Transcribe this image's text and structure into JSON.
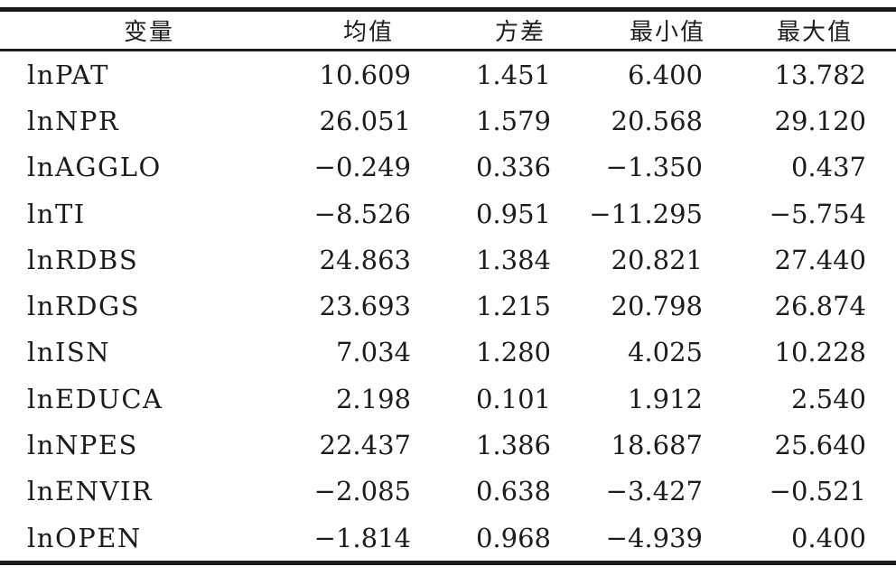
{
  "table": {
    "title": "descriptive-statistics",
    "columns": [
      {
        "key": "variable",
        "label": "变量"
      },
      {
        "key": "mean",
        "label": "均值"
      },
      {
        "key": "variance",
        "label": "方差"
      },
      {
        "key": "min",
        "label": "最小值"
      },
      {
        "key": "max",
        "label": "最大值"
      }
    ],
    "rows": [
      {
        "variable": "lnPAT",
        "mean": "10.609",
        "variance": "1.451",
        "min": "6.400",
        "max": "13.782"
      },
      {
        "variable": "lnNPR",
        "mean": "26.051",
        "variance": "1.579",
        "min": "20.568",
        "max": "29.120"
      },
      {
        "variable": "lnAGGLO",
        "mean": "−0.249",
        "variance": "0.336",
        "min": "−1.350",
        "max": "0.437"
      },
      {
        "variable": "lnTI",
        "mean": "−8.526",
        "variance": "0.951",
        "min": "−11.295",
        "max": "−5.754"
      },
      {
        "variable": "lnRDBS",
        "mean": "24.863",
        "variance": "1.384",
        "min": "20.821",
        "max": "27.440"
      },
      {
        "variable": "lnRDGS",
        "mean": "23.693",
        "variance": "1.215",
        "min": "20.798",
        "max": "26.874"
      },
      {
        "variable": "lnISN",
        "mean": "7.034",
        "variance": "1.280",
        "min": "4.025",
        "max": "10.228"
      },
      {
        "variable": "lnEDUCA",
        "mean": "2.198",
        "variance": "0.101",
        "min": "1.912",
        "max": "2.540"
      },
      {
        "variable": "lnNPES",
        "mean": "22.437",
        "variance": "1.386",
        "min": "18.687",
        "max": "25.640"
      },
      {
        "variable": "lnENVIR",
        "mean": "−2.085",
        "variance": "0.638",
        "min": "−3.427",
        "max": "−0.521"
      },
      {
        "variable": "lnOPEN",
        "mean": "−1.814",
        "variance": "0.968",
        "min": "−4.939",
        "max": "0.400"
      }
    ]
  },
  "colors": {
    "background": "#ffffff",
    "text": "#1c1c1c",
    "rule": "#1a1a1a"
  }
}
